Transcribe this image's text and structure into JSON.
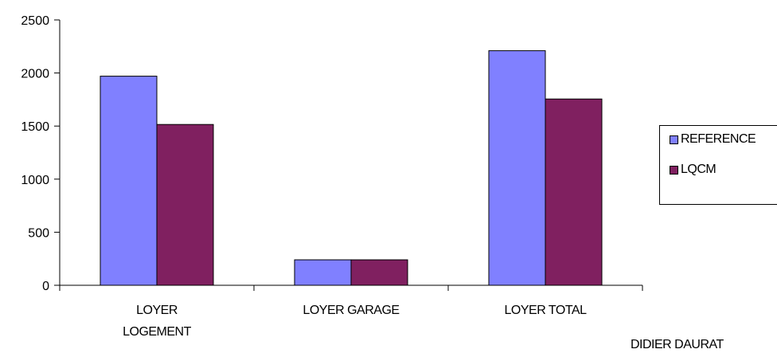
{
  "chart_data": {
    "type": "bar",
    "categories": [
      "LOYER\nLOGEMENT",
      "LOYER GARAGE",
      "LOYER TOTAL"
    ],
    "series": [
      {
        "name": "REFERENCE",
        "values": [
          1970,
          240,
          2210
        ],
        "color": "#8080ff"
      },
      {
        "name": "LQCM",
        "values": [
          1515,
          240,
          1755
        ],
        "color": "#802060"
      }
    ],
    "title": "",
    "xlabel": "",
    "ylabel": "",
    "ylim": [
      0,
      2500
    ],
    "yticks": [
      0,
      500,
      1000,
      1500,
      2000,
      2500
    ],
    "grid": false,
    "legend": "right"
  },
  "footer": {
    "text": "DIDIER DAURAT"
  }
}
